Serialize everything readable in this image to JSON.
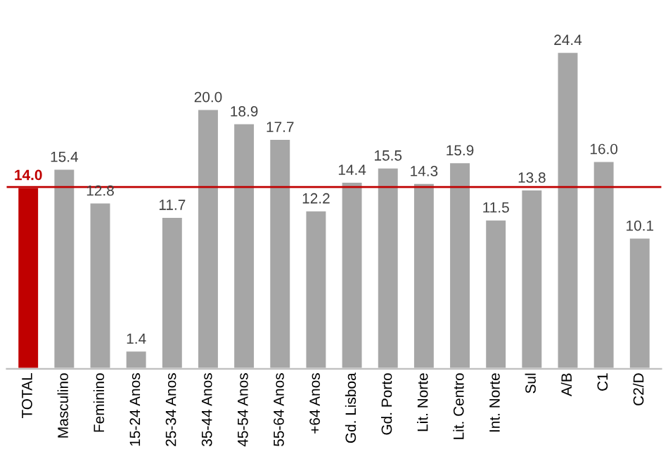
{
  "chart_data": {
    "type": "bar",
    "categories": [
      "TOTAL",
      "Masculino",
      "Feminino",
      "15-24 Anos",
      "25-34 Anos",
      "35-44 Anos",
      "45-54 Anos",
      "55-64 Anos",
      "+64 Anos",
      "Gd. Lisboa",
      "Gd. Porto",
      "Lit. Norte",
      "Lit. Centro",
      "Int. Norte",
      "Sul",
      "A/B",
      "C1",
      "C2/D"
    ],
    "values": [
      14.0,
      15.4,
      12.8,
      1.4,
      11.7,
      20.0,
      18.9,
      17.7,
      12.2,
      14.4,
      15.5,
      14.3,
      15.9,
      11.5,
      13.8,
      24.4,
      16.0,
      10.1
    ],
    "colors": [
      "#c00000",
      "#a6a6a6",
      "#a6a6a6",
      "#a6a6a6",
      "#a6a6a6",
      "#a6a6a6",
      "#a6a6a6",
      "#a6a6a6",
      "#a6a6a6",
      "#a6a6a6",
      "#a6a6a6",
      "#a6a6a6",
      "#a6a6a6",
      "#a6a6a6",
      "#a6a6a6",
      "#a6a6a6",
      "#a6a6a6",
      "#a6a6a6"
    ],
    "value_labels": [
      "14.0",
      "15.4",
      "12.8",
      "1.4",
      "11.7",
      "20.0",
      "18.9",
      "17.7",
      "12.2",
      "14.4",
      "15.5",
      "14.3",
      "15.9",
      "11.5",
      "13.8",
      "24.4",
      "16.0",
      "10.1"
    ],
    "ref_lines": [
      {
        "axis": "y",
        "value": 14.0,
        "color": "#c00000",
        "line_style": "solid"
      }
    ],
    "grid": false,
    "legend": false
  }
}
